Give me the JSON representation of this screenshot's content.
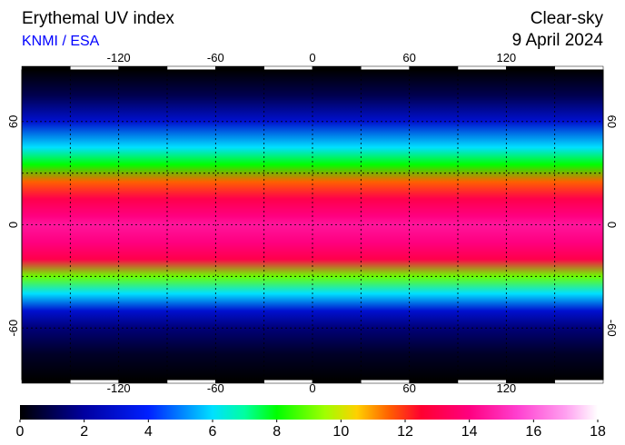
{
  "header": {
    "title": "Erythemal UV index",
    "source": "KNMI / ESA",
    "condition": "Clear-sky",
    "date": "9 April 2024"
  },
  "map": {
    "xlim": [
      -180,
      180
    ],
    "ylim": [
      -90,
      90
    ],
    "xticks": [
      -120,
      -60,
      0,
      60,
      120
    ],
    "yticks": [
      -60,
      0,
      60
    ],
    "xgrid": [
      -150,
      -120,
      -90,
      -60,
      -30,
      0,
      30,
      60,
      90,
      120,
      150
    ],
    "ygrid": [
      -60,
      -30,
      0,
      30,
      60
    ],
    "zonal_uv": {
      "lat": [
        90,
        75,
        60,
        45,
        35,
        25,
        15,
        5,
        0,
        -10,
        -20,
        -30,
        -40,
        -50,
        -60,
        -75,
        -90
      ],
      "values": [
        0,
        1,
        3,
        6,
        8,
        11.5,
        13,
        14,
        14.5,
        14,
        13,
        9,
        6,
        3,
        1.5,
        0.5,
        0
      ]
    }
  },
  "colorbar": {
    "lim": [
      0,
      18
    ],
    "ticks": [
      0,
      2,
      4,
      6,
      8,
      10,
      12,
      14,
      16,
      18
    ],
    "stops": [
      {
        "value": 0,
        "color": "#000000"
      },
      {
        "value": 2,
        "color": "#0000a0"
      },
      {
        "value": 4,
        "color": "#0020ff"
      },
      {
        "value": 5,
        "color": "#0080ff"
      },
      {
        "value": 6,
        "color": "#00e0ff"
      },
      {
        "value": 7,
        "color": "#00ffa0"
      },
      {
        "value": 8,
        "color": "#00ff00"
      },
      {
        "value": 9.5,
        "color": "#a0ff00"
      },
      {
        "value": 10.5,
        "color": "#ffd000"
      },
      {
        "value": 11.5,
        "color": "#ff6000"
      },
      {
        "value": 12.5,
        "color": "#ff0030"
      },
      {
        "value": 14,
        "color": "#ff0080"
      },
      {
        "value": 15.5,
        "color": "#ff40d0"
      },
      {
        "value": 17,
        "color": "#ffa0f0"
      },
      {
        "value": 18,
        "color": "#ffffff"
      }
    ]
  }
}
